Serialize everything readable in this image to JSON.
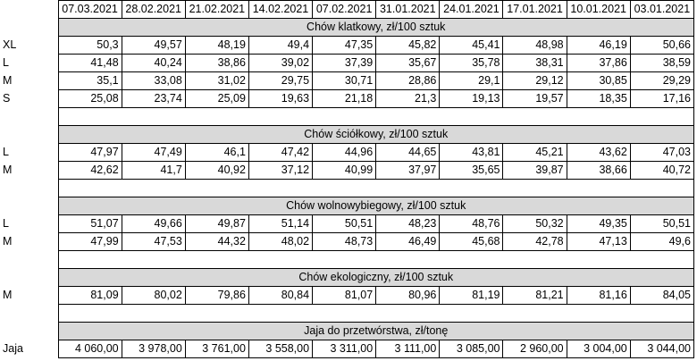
{
  "table": {
    "dates": [
      "07.03.2021",
      "28.02.2021",
      "21.02.2021",
      "14.02.2021",
      "07.02.2021",
      "31.01.2021",
      "24.01.2021",
      "17.01.2021",
      "10.01.2021",
      "03.01.2021"
    ],
    "sections": [
      {
        "title": "Chów klatkowy, zł/100 sztuk",
        "rows": [
          {
            "label": "XL",
            "values": [
              "50,3",
              "49,57",
              "48,19",
              "49,4",
              "47,35",
              "45,82",
              "45,41",
              "48,98",
              "46,19",
              "50,66"
            ]
          },
          {
            "label": "L",
            "values": [
              "41,48",
              "40,24",
              "38,86",
              "39,02",
              "37,39",
              "35,67",
              "35,78",
              "38,31",
              "37,86",
              "38,59"
            ]
          },
          {
            "label": "M",
            "values": [
              "35,1",
              "33,08",
              "31,02",
              "29,75",
              "30,71",
              "28,86",
              "29,1",
              "29,12",
              "30,85",
              "29,29"
            ]
          },
          {
            "label": "S",
            "values": [
              "25,08",
              "23,74",
              "25,09",
              "19,63",
              "21,18",
              "21,3",
              "19,13",
              "19,57",
              "18,35",
              "17,16"
            ]
          }
        ]
      },
      {
        "title": "Chów ściółkowy, zł/100 sztuk",
        "rows": [
          {
            "label": "L",
            "values": [
              "47,97",
              "47,49",
              "46,1",
              "47,42",
              "44,96",
              "44,65",
              "43,81",
              "45,21",
              "43,62",
              "47,03"
            ]
          },
          {
            "label": "M",
            "values": [
              "42,62",
              "41,7",
              "40,92",
              "37,12",
              "40,99",
              "37,97",
              "35,65",
              "39,87",
              "38,66",
              "40,72"
            ]
          }
        ]
      },
      {
        "title": "Chów wolnowybiegowy, zł/100 sztuk",
        "rows": [
          {
            "label": "L",
            "values": [
              "51,07",
              "49,66",
              "49,87",
              "51,14",
              "50,51",
              "48,23",
              "48,76",
              "50,32",
              "49,35",
              "50,51"
            ]
          },
          {
            "label": "M",
            "values": [
              "47,99",
              "47,53",
              "44,32",
              "48,02",
              "48,73",
              "46,49",
              "45,68",
              "42,78",
              "47,13",
              "49,6"
            ]
          }
        ]
      },
      {
        "title": "Chów ekologiczny, zł/100 sztuk",
        "rows": [
          {
            "label": "M",
            "values": [
              "81,09",
              "80,02",
              "79,86",
              "80,84",
              "81,07",
              "80,96",
              "81,19",
              "81,21",
              "81,16",
              "84,05"
            ]
          }
        ]
      },
      {
        "title": "Jaja do przetwórstwa, zł/tonę",
        "rows": [
          {
            "label": "Jaja",
            "values": [
              "4 060,00",
              "3 978,00",
              "3 761,00",
              "3 558,00",
              "3 311,00",
              "3 111,00",
              "3 085,00",
              "2 960,00",
              "3 004,00",
              "3 044,00"
            ]
          }
        ]
      }
    ]
  }
}
